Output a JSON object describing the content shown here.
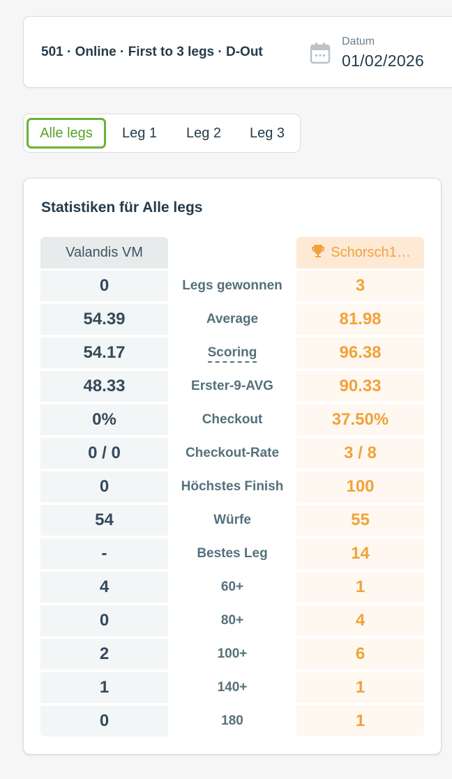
{
  "header": {
    "match_info": "501 · Online · First to 3 legs · D-Out",
    "date_label": "Datum",
    "date_value": "01/02/2026"
  },
  "tabs": [
    {
      "label": "Alle legs",
      "active": true
    },
    {
      "label": "Leg 1",
      "active": false
    },
    {
      "label": "Leg 2",
      "active": false
    },
    {
      "label": "Leg 3",
      "active": false
    }
  ],
  "stats": {
    "title": "Statistiken für Alle legs",
    "player_left": "Valandis VM",
    "player_right": "Schorsch1…",
    "player_right_icon": "trophy-icon",
    "rows": [
      {
        "label": "Legs gewonnen",
        "left": "0",
        "right": "3"
      },
      {
        "label": "Average",
        "left": "54.39",
        "right": "81.98"
      },
      {
        "label": "Scoring",
        "left": "54.17",
        "right": "96.38"
      },
      {
        "label": "Erster-9-AVG",
        "left": "48.33",
        "right": "90.33"
      },
      {
        "label": "Checkout",
        "left": "0%",
        "right": "37.50%"
      },
      {
        "label": "Checkout-Rate",
        "left": "0 / 0",
        "right": "3 / 8"
      },
      {
        "label": "Höchstes Finish",
        "left": "0",
        "right": "100"
      },
      {
        "label": "Würfe",
        "left": "54",
        "right": "55"
      },
      {
        "label": "Bestes Leg",
        "left": "-",
        "right": "14"
      },
      {
        "label": "60+",
        "left": "4",
        "right": "1"
      },
      {
        "label": "80+",
        "left": "0",
        "right": "4"
      },
      {
        "label": "100+",
        "left": "2",
        "right": "6"
      },
      {
        "label": "140+",
        "left": "1",
        "right": "1"
      },
      {
        "label": "180",
        "left": "0",
        "right": "1"
      }
    ]
  },
  "colors": {
    "accent_green": "#69b13b",
    "winner_orange": "#f0a23a",
    "text_dark": "#243b4a"
  }
}
